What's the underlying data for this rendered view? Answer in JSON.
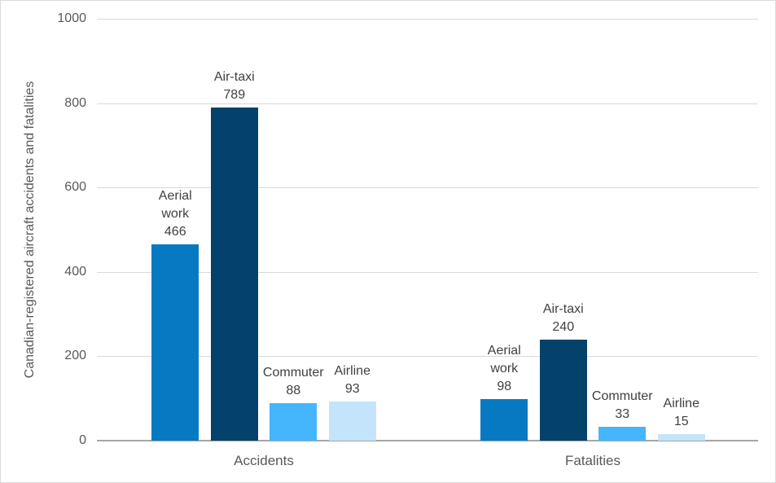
{
  "chart_data": {
    "type": "bar",
    "title": "",
    "ylabel": "Canadian-registered aircraft accidents and fatalities",
    "xlabel": "",
    "ylim": [
      0,
      1000
    ],
    "y_ticks": [
      0,
      200,
      400,
      600,
      800,
      1000
    ],
    "grid": "horizontal",
    "legend": "none (bars labeled directly)",
    "groups": [
      "Accidents",
      "Fatalities"
    ],
    "series": [
      "Aerial work",
      "Air-taxi",
      "Commuter",
      "Airline"
    ],
    "series_colors": [
      "#0779c2",
      "#05426b",
      "#45b5fc",
      "#c3e4fb"
    ],
    "values": [
      [
        466,
        789,
        88,
        93
      ],
      [
        98,
        240,
        33,
        15
      ]
    ]
  },
  "colors": {
    "gridline": "#d9d9d9",
    "axis_line": "#a6a6a6",
    "tick_text": "#595959",
    "label_text": "#404040",
    "frame_border": "#d9d9d9"
  }
}
